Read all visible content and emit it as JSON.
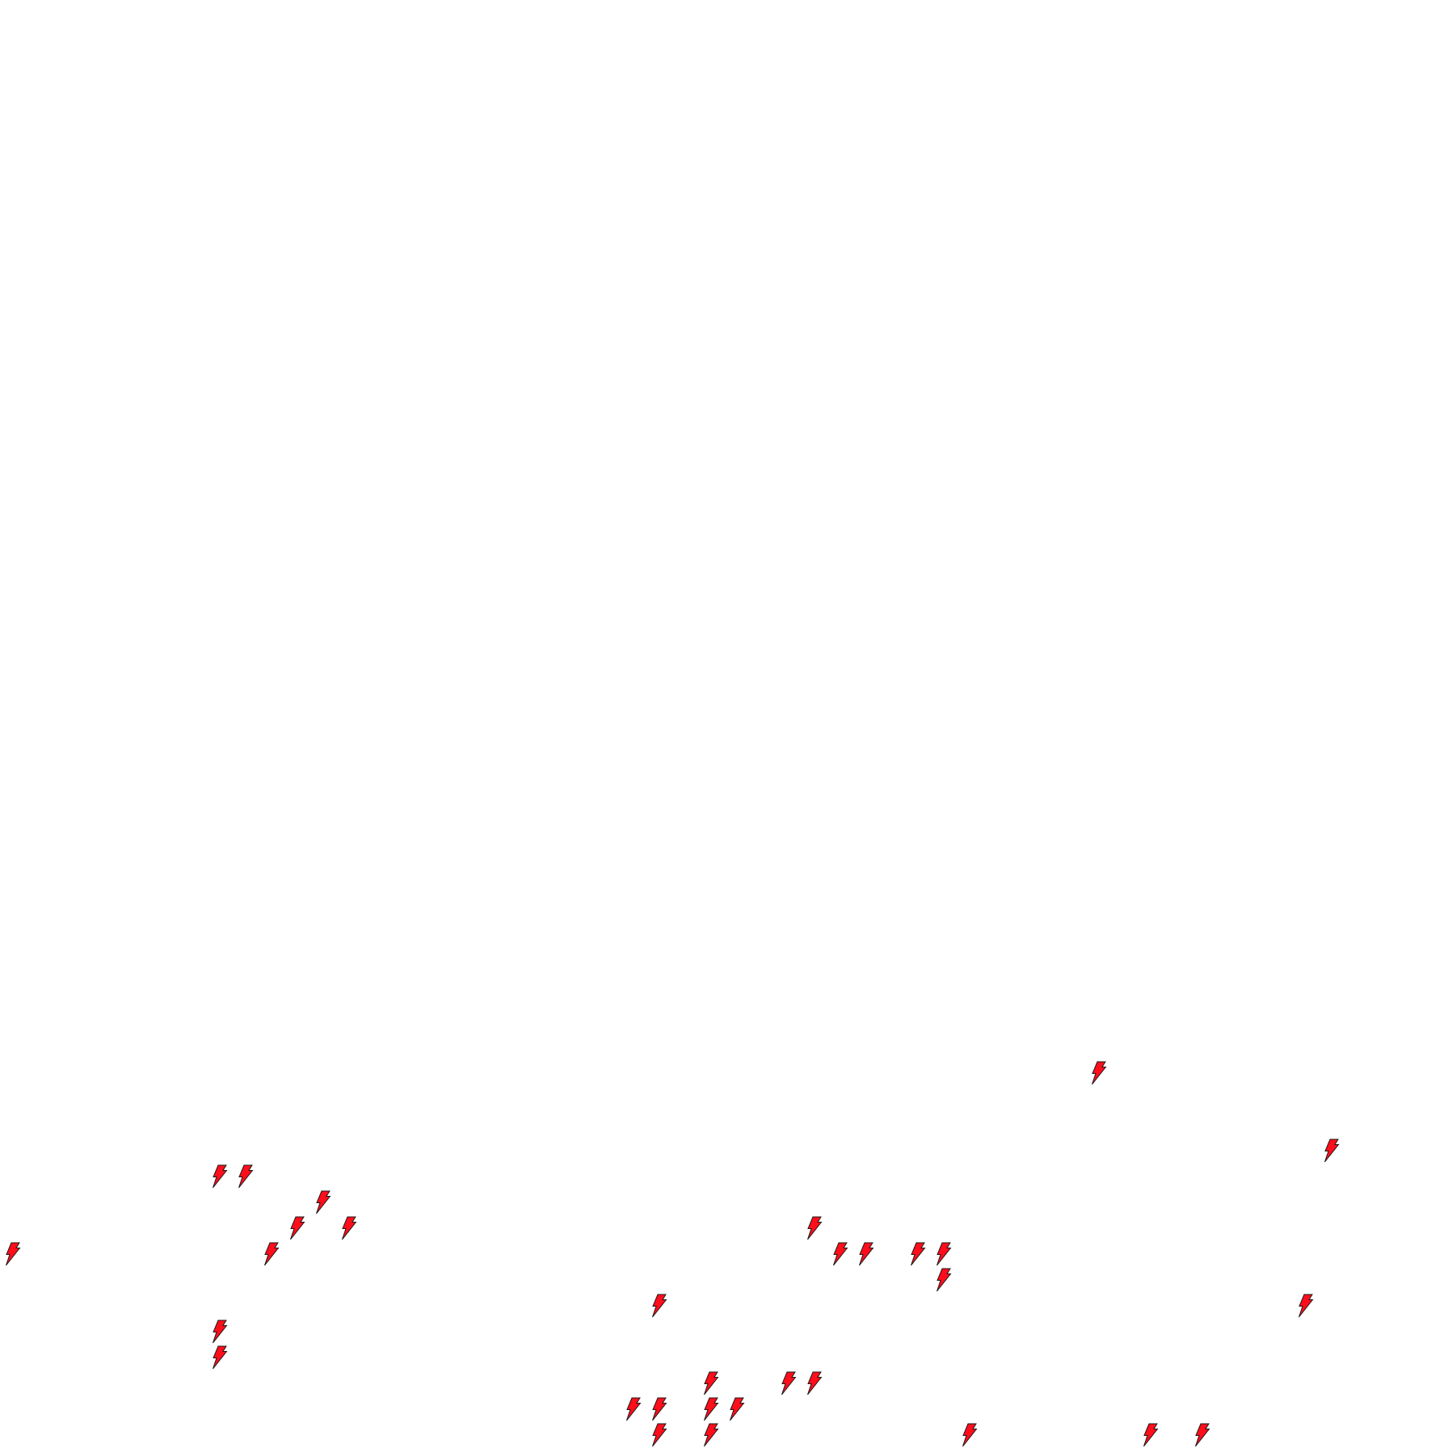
{
  "icons": {
    "name": "lightning-bolt-icon",
    "fill": "#ff0d1a",
    "stroke": "#1a1a1a",
    "count": 31
  },
  "background": "#ffffff"
}
